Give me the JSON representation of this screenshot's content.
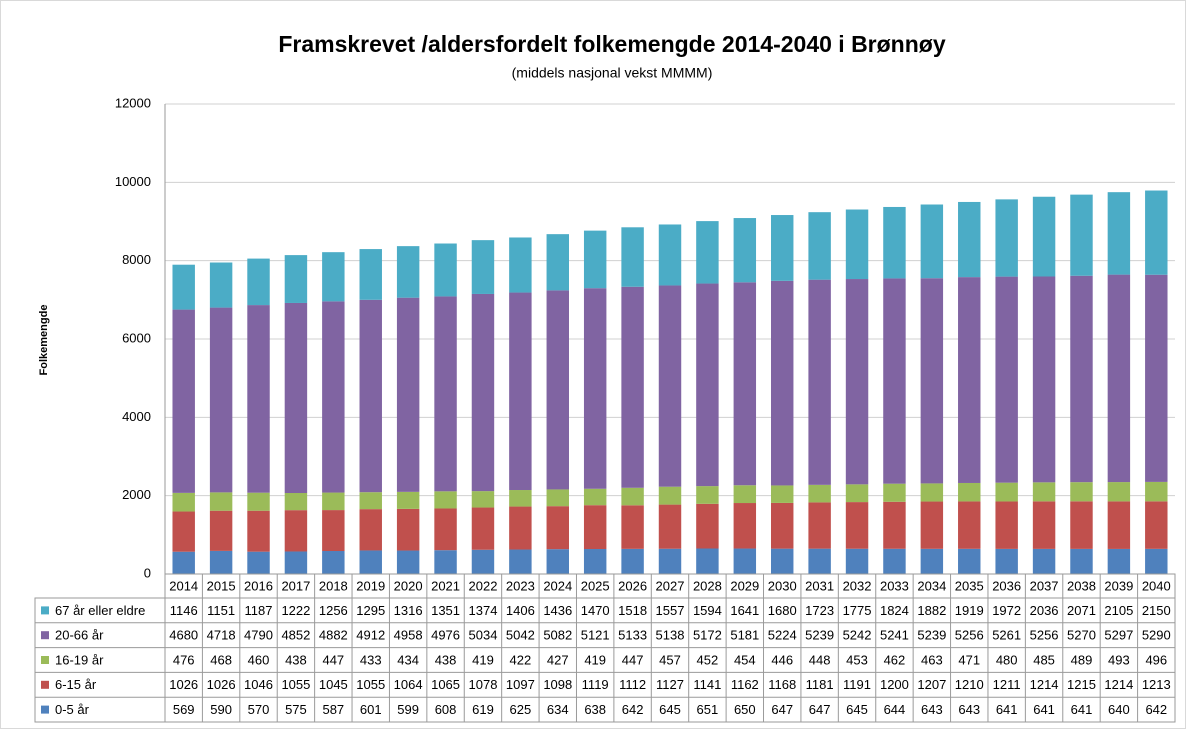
{
  "chart_data": {
    "type": "stacked_bar",
    "title": "Framskrevet /aldersfordelt folkemengde 2014-2040  i Brønnøy",
    "subtitle": "(middels nasjonal vekst MMMM)",
    "y_label": "Folkemengde",
    "categories": [
      "2014",
      "2015",
      "2016",
      "2017",
      "2018",
      "2019",
      "2020",
      "2021",
      "2022",
      "2023",
      "2024",
      "2025",
      "2026",
      "2027",
      "2028",
      "2029",
      "2030",
      "2031",
      "2032",
      "2033",
      "2034",
      "2035",
      "2036",
      "2037",
      "2038",
      "2039",
      "2040"
    ],
    "ylim": [
      0,
      12000
    ],
    "yticks": [
      0,
      2000,
      4000,
      6000,
      8000,
      10000,
      12000
    ],
    "grid": true,
    "series": [
      {
        "name": "0-5 år",
        "color": "#4f81bd",
        "values": [
          569,
          590,
          570,
          575,
          587,
          601,
          599,
          608,
          619,
          625,
          634,
          638,
          642,
          645,
          651,
          650,
          647,
          647,
          645,
          644,
          643,
          643,
          641,
          641,
          641,
          640,
          642
        ]
      },
      {
        "name": "6-15 år",
        "color": "#c0504d",
        "values": [
          1026,
          1026,
          1046,
          1055,
          1045,
          1055,
          1064,
          1065,
          1078,
          1097,
          1098,
          1119,
          1112,
          1127,
          1141,
          1162,
          1168,
          1181,
          1191,
          1200,
          1207,
          1210,
          1211,
          1214,
          1215,
          1214,
          1213
        ]
      },
      {
        "name": "16-19 år",
        "color": "#9bbb59",
        "values": [
          476,
          468,
          460,
          438,
          447,
          433,
          434,
          438,
          419,
          422,
          427,
          419,
          447,
          457,
          452,
          454,
          446,
          448,
          453,
          462,
          463,
          471,
          480,
          485,
          489,
          493,
          496
        ]
      },
      {
        "name": "20-66 år",
        "color": "#8064a2",
        "values": [
          4680,
          4718,
          4790,
          4852,
          4882,
          4912,
          4958,
          4976,
          5034,
          5042,
          5082,
          5121,
          5133,
          5138,
          5172,
          5181,
          5224,
          5239,
          5242,
          5241,
          5239,
          5256,
          5261,
          5256,
          5270,
          5297,
          5290
        ]
      },
      {
        "name": "67 år eller eldre",
        "color": "#4bacc6",
        "values": [
          1146,
          1151,
          1187,
          1222,
          1256,
          1295,
          1316,
          1351,
          1374,
          1406,
          1436,
          1470,
          1518,
          1557,
          1594,
          1641,
          1680,
          1723,
          1775,
          1824,
          1882,
          1919,
          1972,
          2036,
          2071,
          2105,
          2150
        ]
      }
    ]
  }
}
